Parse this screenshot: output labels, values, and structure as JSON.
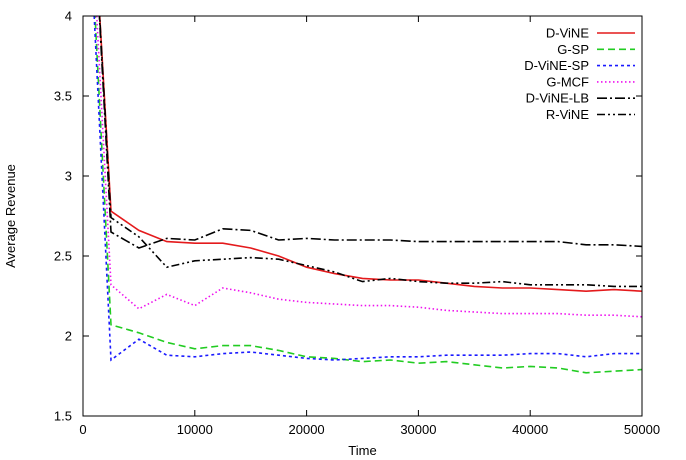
{
  "chart_data": {
    "type": "line",
    "title": "",
    "xlabel": "Time",
    "ylabel": "Average Revenue",
    "xlim": [
      0,
      50000
    ],
    "ylim": [
      1.5,
      4
    ],
    "x_ticks": [
      {
        "value": 0,
        "label": "0"
      },
      {
        "value": 10000,
        "label": "10000"
      },
      {
        "value": 20000,
        "label": "20000"
      },
      {
        "value": 30000,
        "label": "30000"
      },
      {
        "value": 40000,
        "label": "40000"
      },
      {
        "value": 50000,
        "label": "50000"
      }
    ],
    "y_ticks": [
      {
        "value": 1.5,
        "label": "1.5"
      },
      {
        "value": 2,
        "label": "2"
      },
      {
        "value": 2.5,
        "label": "2.5"
      },
      {
        "value": 3,
        "label": "3"
      },
      {
        "value": 3.5,
        "label": "3.5"
      },
      {
        "value": 4,
        "label": "4"
      }
    ],
    "grid": false,
    "legend_position": "top-right",
    "series": [
      {
        "name": "D-ViNE",
        "color": "#e41a1c",
        "dash": "solid",
        "points": [
          [
            1000,
            4.6
          ],
          [
            2500,
            2.78
          ],
          [
            5000,
            2.66
          ],
          [
            7500,
            2.59
          ],
          [
            10000,
            2.58
          ],
          [
            12500,
            2.58
          ],
          [
            15000,
            2.55
          ],
          [
            17500,
            2.5
          ],
          [
            20000,
            2.43
          ],
          [
            22500,
            2.39
          ],
          [
            25000,
            2.36
          ],
          [
            27500,
            2.35
          ],
          [
            30000,
            2.35
          ],
          [
            32500,
            2.33
          ],
          [
            35000,
            2.31
          ],
          [
            37500,
            2.3
          ],
          [
            40000,
            2.3
          ],
          [
            42500,
            2.29
          ],
          [
            45000,
            2.28
          ],
          [
            47500,
            2.29
          ],
          [
            50000,
            2.28
          ]
        ]
      },
      {
        "name": "G-SP",
        "color": "#22cc22",
        "dash": "dash",
        "points": [
          [
            1000,
            4.1
          ],
          [
            2500,
            2.07
          ],
          [
            5000,
            2.02
          ],
          [
            7500,
            1.96
          ],
          [
            10000,
            1.92
          ],
          [
            12500,
            1.94
          ],
          [
            15000,
            1.94
          ],
          [
            17500,
            1.91
          ],
          [
            20000,
            1.87
          ],
          [
            22500,
            1.86
          ],
          [
            25000,
            1.84
          ],
          [
            27500,
            1.85
          ],
          [
            30000,
            1.83
          ],
          [
            32500,
            1.84
          ],
          [
            35000,
            1.82
          ],
          [
            37500,
            1.8
          ],
          [
            40000,
            1.81
          ],
          [
            42500,
            1.8
          ],
          [
            45000,
            1.77
          ],
          [
            47500,
            1.78
          ],
          [
            50000,
            1.79
          ]
        ]
      },
      {
        "name": "D-ViNE-SP",
        "color": "#1a1aff",
        "dash": "dot",
        "points": [
          [
            1000,
            4.0
          ],
          [
            2500,
            1.85
          ],
          [
            5000,
            1.98
          ],
          [
            7500,
            1.88
          ],
          [
            10000,
            1.87
          ],
          [
            12500,
            1.89
          ],
          [
            15000,
            1.9
          ],
          [
            17500,
            1.88
          ],
          [
            20000,
            1.86
          ],
          [
            22500,
            1.85
          ],
          [
            25000,
            1.86
          ],
          [
            27500,
            1.87
          ],
          [
            30000,
            1.87
          ],
          [
            32500,
            1.88
          ],
          [
            35000,
            1.88
          ],
          [
            37500,
            1.88
          ],
          [
            40000,
            1.89
          ],
          [
            42500,
            1.89
          ],
          [
            45000,
            1.87
          ],
          [
            47500,
            1.89
          ],
          [
            50000,
            1.89
          ]
        ]
      },
      {
        "name": "G-MCF",
        "color": "#ee11ee",
        "dash": "fine-dot",
        "points": [
          [
            1000,
            4.3
          ],
          [
            2500,
            2.32
          ],
          [
            5000,
            2.17
          ],
          [
            7500,
            2.26
          ],
          [
            10000,
            2.19
          ],
          [
            12500,
            2.3
          ],
          [
            15000,
            2.27
          ],
          [
            17500,
            2.23
          ],
          [
            20000,
            2.21
          ],
          [
            22500,
            2.2
          ],
          [
            25000,
            2.19
          ],
          [
            27500,
            2.19
          ],
          [
            30000,
            2.18
          ],
          [
            32500,
            2.16
          ],
          [
            35000,
            2.15
          ],
          [
            37500,
            2.14
          ],
          [
            40000,
            2.14
          ],
          [
            42500,
            2.14
          ],
          [
            45000,
            2.13
          ],
          [
            47500,
            2.13
          ],
          [
            50000,
            2.12
          ]
        ]
      },
      {
        "name": "D-ViNE-LB",
        "color": "#000000",
        "dash": "dash-dot",
        "points": [
          [
            1000,
            4.6
          ],
          [
            2500,
            2.65
          ],
          [
            5000,
            2.55
          ],
          [
            7500,
            2.61
          ],
          [
            10000,
            2.6
          ],
          [
            12500,
            2.67
          ],
          [
            15000,
            2.66
          ],
          [
            17500,
            2.6
          ],
          [
            20000,
            2.61
          ],
          [
            22500,
            2.6
          ],
          [
            25000,
            2.6
          ],
          [
            27500,
            2.6
          ],
          [
            30000,
            2.59
          ],
          [
            32500,
            2.59
          ],
          [
            35000,
            2.59
          ],
          [
            37500,
            2.59
          ],
          [
            40000,
            2.59
          ],
          [
            42500,
            2.59
          ],
          [
            45000,
            2.57
          ],
          [
            47500,
            2.57
          ],
          [
            50000,
            2.56
          ]
        ]
      },
      {
        "name": "R-ViNE",
        "color": "#000000",
        "dash": "dash-dot-dot",
        "points": [
          [
            1000,
            4.6
          ],
          [
            2500,
            2.74
          ],
          [
            5000,
            2.62
          ],
          [
            7500,
            2.43
          ],
          [
            10000,
            2.47
          ],
          [
            12500,
            2.48
          ],
          [
            15000,
            2.49
          ],
          [
            17500,
            2.48
          ],
          [
            20000,
            2.44
          ],
          [
            22500,
            2.4
          ],
          [
            25000,
            2.34
          ],
          [
            27500,
            2.36
          ],
          [
            30000,
            2.34
          ],
          [
            32500,
            2.33
          ],
          [
            35000,
            2.33
          ],
          [
            37500,
            2.34
          ],
          [
            40000,
            2.32
          ],
          [
            42500,
            2.32
          ],
          [
            45000,
            2.32
          ],
          [
            47500,
            2.31
          ],
          [
            50000,
            2.31
          ]
        ]
      }
    ]
  }
}
